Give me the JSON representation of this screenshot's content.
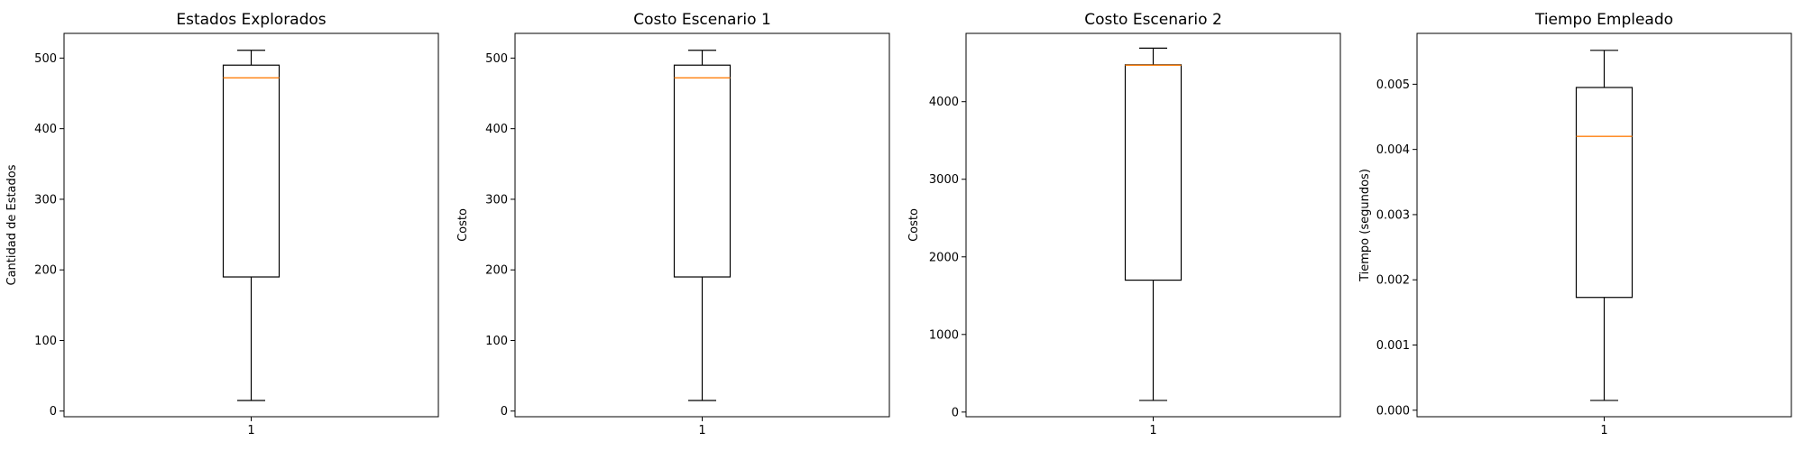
{
  "colors": {
    "box": "#000000",
    "median": "#ff7f0e",
    "background": "#ffffff"
  },
  "chart_data": [
    {
      "type": "box",
      "title": "Estados Explorados",
      "xlabel": "",
      "ylabel": "Cantidad de Estados",
      "categories": [
        "1"
      ],
      "ylim": [
        -8,
        535
      ],
      "yticks": [
        0,
        100,
        200,
        300,
        400,
        500
      ],
      "ytick_labels": [
        "0",
        "100",
        "200",
        "300",
        "400",
        "500"
      ],
      "box": {
        "whislo": 15,
        "q1": 190,
        "med": 472,
        "q3": 490,
        "whishi": 511
      }
    },
    {
      "type": "box",
      "title": "Costo Escenario 1",
      "xlabel": "",
      "ylabel": "Costo",
      "categories": [
        "1"
      ],
      "ylim": [
        -8,
        535
      ],
      "yticks": [
        0,
        100,
        200,
        300,
        400,
        500
      ],
      "ytick_labels": [
        "0",
        "100",
        "200",
        "300",
        "400",
        "500"
      ],
      "box": {
        "whislo": 15,
        "q1": 190,
        "med": 472,
        "q3": 490,
        "whishi": 511
      }
    },
    {
      "type": "box",
      "title": "Costo Escenario 2",
      "xlabel": "",
      "ylabel": "Costo",
      "categories": [
        "1"
      ],
      "ylim": [
        -60,
        4880
      ],
      "yticks": [
        0,
        1000,
        2000,
        3000,
        4000
      ],
      "ytick_labels": [
        "0",
        "1000",
        "2000",
        "3000",
        "4000"
      ],
      "box": {
        "whislo": 150,
        "q1": 1700,
        "med": 4470,
        "q3": 4475,
        "whishi": 4690
      }
    },
    {
      "type": "box",
      "title": "Tiempo Empleado",
      "xlabel": "",
      "ylabel": "Tiempo (segundos)",
      "categories": [
        "1"
      ],
      "ylim": [
        -0.0001,
        0.00578
      ],
      "yticks": [
        0,
        0.001,
        0.002,
        0.003,
        0.004,
        0.005
      ],
      "ytick_labels": [
        "0.000",
        "0.001",
        "0.002",
        "0.003",
        "0.004",
        "0.005"
      ],
      "box": {
        "whislo": 0.00015,
        "q1": 0.00173,
        "med": 0.0042,
        "q3": 0.00495,
        "whishi": 0.00552
      }
    }
  ]
}
